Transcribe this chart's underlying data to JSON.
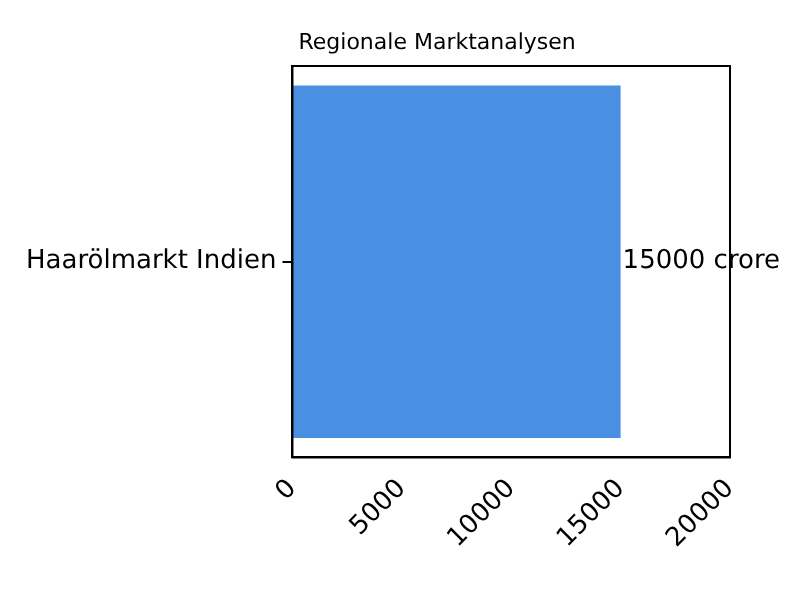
{
  "chart_data": {
    "type": "bar",
    "orientation": "horizontal",
    "title": "Regionale Marktanalysen",
    "categories": [
      "Haarölmarkt Indien"
    ],
    "values": [
      15000
    ],
    "value_labels": [
      "15000 crore"
    ],
    "color": "#4a90e2",
    "xlim": [
      0,
      20000
    ],
    "xticks": [
      0,
      5000,
      10000,
      15000,
      20000
    ],
    "grid": false,
    "legend": false
  }
}
